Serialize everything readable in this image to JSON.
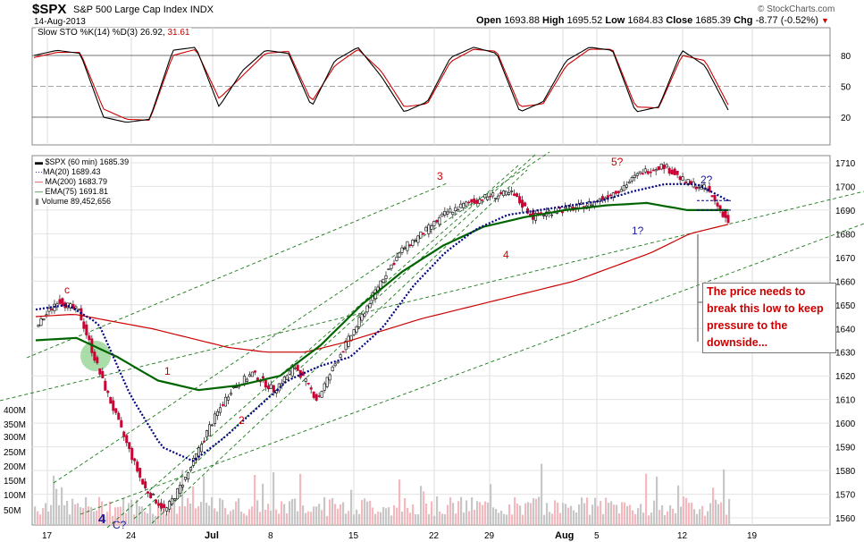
{
  "header": {
    "symbol": "$SPX",
    "name": "S&P 500 Large Cap Index",
    "exchange": "INDX",
    "date": "14-Aug-2013",
    "open_label": "Open",
    "open": "1693.88",
    "high_label": "High",
    "high": "1695.52",
    "low_label": "Low",
    "low": "1684.83",
    "close_label": "Close",
    "close": "1685.39",
    "chg_label": "Chg",
    "chg": "-8.77 (-0.52%)",
    "chg_icon": "down-triangle-icon",
    "copyright": "© StockCharts.com"
  },
  "indicator": {
    "label": "Slow STO %K(14) %D(3)",
    "k_value": "26.92",
    "d_value": "31.61",
    "ticks": [
      "80",
      "50",
      "20"
    ],
    "tick_values": [
      80,
      50,
      20
    ],
    "colors": {
      "k": "#000000",
      "d": "#cc0000"
    }
  },
  "legend": [
    {
      "label": "$SPX (60 min) 1685.39",
      "color": "#000000"
    },
    {
      "label": "MA(20) 1689.43",
      "color": "#000080"
    },
    {
      "label": "MA(200) 1683.79",
      "color": "#cc0000"
    },
    {
      "label": "EMA(75) 1691.81",
      "color": "#006400"
    },
    {
      "label": "Volume 89,452,656",
      "color": "#808080"
    }
  ],
  "price_axis": [
    "1710",
    "1700",
    "1690",
    "1680",
    "1670",
    "1660",
    "1650",
    "1640",
    "1630",
    "1620",
    "1610",
    "1600",
    "1590",
    "1580",
    "1570",
    "1560"
  ],
  "volume_axis": [
    "400M",
    "350M",
    "300M",
    "250M",
    "200M",
    "150M",
    "100M",
    "50M"
  ],
  "x_axis": [
    "17",
    "24",
    "Jul",
    "8",
    "15",
    "22",
    "29",
    "Aug",
    "5",
    "12",
    "19"
  ],
  "wave_labels": [
    "c",
    "1",
    "2",
    "3",
    "4",
    "5?",
    "1?",
    "2?",
    "4",
    "C?"
  ],
  "annotation": "The price needs to break this low to keep pressure to the downside...",
  "chart_data": {
    "type": "line",
    "title": "$SPX S&P 500 Large Cap Index INDX",
    "x_ticks": [
      "17",
      "24",
      "Jul",
      "8",
      "15",
      "22",
      "29",
      "Aug",
      "5",
      "12",
      "19"
    ],
    "ylim": [
      1557,
      1713
    ],
    "series": [
      {
        "name": "$SPX (60 min)",
        "x": [
          0,
          3,
          6,
          9,
          12,
          15,
          18,
          21,
          24,
          27,
          30,
          33,
          36,
          39,
          42,
          45,
          48,
          51,
          54,
          57,
          60,
          63,
          66,
          69,
          72,
          75,
          78,
          81,
          84,
          87,
          90,
          93,
          96
        ],
        "values": [
          1640,
          1652,
          1647,
          1620,
          1596,
          1573,
          1563,
          1578,
          1598,
          1614,
          1621,
          1614,
          1624,
          1610,
          1628,
          1644,
          1661,
          1674,
          1681,
          1689,
          1693,
          1696,
          1697,
          1687,
          1690,
          1691,
          1694,
          1699,
          1706,
          1709,
          1702,
          1699,
          1685
        ]
      },
      {
        "name": "MA(20)",
        "values": [
          1648,
          1650,
          1642,
          1612,
          1590,
          1584,
          1594,
          1606,
          1618,
          1624,
          1628,
          1640,
          1658,
          1672,
          1682,
          1688,
          1690,
          1692,
          1694,
          1698,
          1701,
          1701,
          1694
        ]
      },
      {
        "name": "MA(200)",
        "values": [
          1645,
          1646,
          1643,
          1640,
          1636,
          1632,
          1630,
          1630,
          1634,
          1639,
          1644,
          1648,
          1652,
          1656,
          1660,
          1666,
          1672,
          1680,
          1684
        ]
      },
      {
        "name": "EMA(75)",
        "values": [
          1635,
          1636,
          1628,
          1618,
          1614,
          1616,
          1620,
          1633,
          1650,
          1664,
          1675,
          1683,
          1687,
          1690,
          1692,
          1693,
          1690,
          1690
        ]
      },
      {
        "name": "Slow STO %K(14)",
        "values": [
          80,
          85,
          82,
          20,
          15,
          18,
          85,
          88,
          30,
          65,
          85,
          82,
          30,
          75,
          88,
          60,
          25,
          35,
          78,
          88,
          82,
          25,
          35,
          75,
          88,
          85,
          25,
          30,
          85,
          70,
          27
        ]
      },
      {
        "name": "Slow STO %D(3)",
        "values": [
          78,
          83,
          83,
          28,
          18,
          17,
          80,
          86,
          38,
          60,
          82,
          84,
          35,
          70,
          86,
          65,
          30,
          33,
          74,
          86,
          84,
          30,
          33,
          70,
          86,
          86,
          30,
          29,
          80,
          75,
          32
        ]
      }
    ]
  }
}
